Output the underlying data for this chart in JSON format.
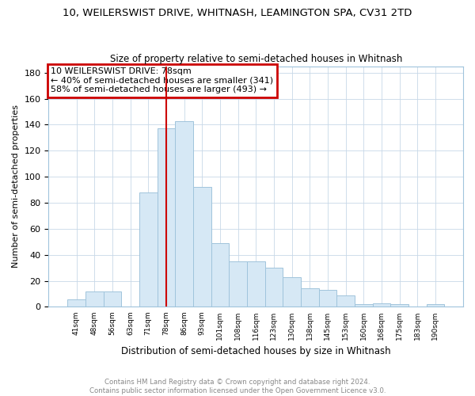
{
  "title": "10, WEILERSWIST DRIVE, WHITNASH, LEAMINGTON SPA, CV31 2TD",
  "subtitle": "Size of property relative to semi-detached houses in Whitnash",
  "xlabel": "Distribution of semi-detached houses by size in Whitnash",
  "ylabel": "Number of semi-detached properties",
  "categories": [
    "41sqm",
    "48sqm",
    "56sqm",
    "63sqm",
    "71sqm",
    "78sqm",
    "86sqm",
    "93sqm",
    "101sqm",
    "108sqm",
    "116sqm",
    "123sqm",
    "130sqm",
    "138sqm",
    "145sqm",
    "153sqm",
    "160sqm",
    "168sqm",
    "175sqm",
    "183sqm",
    "190sqm"
  ],
  "values": [
    6,
    12,
    12,
    0,
    88,
    137,
    143,
    92,
    49,
    35,
    35,
    30,
    23,
    14,
    13,
    9,
    2,
    3,
    2,
    0,
    2
  ],
  "bar_color": "#d6e8f5",
  "bar_edge_color": "#a0c4dc",
  "highlight_index": 5,
  "annotation_line1": "10 WEILERSWIST DRIVE: 78sqm",
  "annotation_line2": "← 40% of semi-detached houses are smaller (341)",
  "annotation_line3": "58% of semi-detached houses are larger (493) →",
  "annotation_box_color": "#cc0000",
  "vline_color": "#cc0000",
  "footer_line1": "Contains HM Land Registry data © Crown copyright and database right 2024.",
  "footer_line2": "Contains public sector information licensed under the Open Government Licence v3.0.",
  "ylim": [
    0,
    185
  ],
  "yticks": [
    0,
    20,
    40,
    60,
    80,
    100,
    120,
    140,
    160,
    180
  ],
  "background_color": "#ffffff",
  "grid_color": "#c8d8e8"
}
